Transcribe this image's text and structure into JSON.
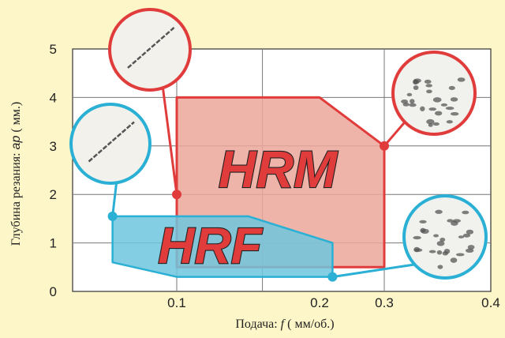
{
  "chart_data": {
    "type": "area",
    "xlabel": {
      "prefix": "Подача: ",
      "symbol": "f",
      "unit": " ( мм/об.)"
    },
    "ylabel": {
      "prefix": "Глубина резания: ",
      "symbol": "ap",
      "unit": " ( мм.)"
    },
    "x_ticks": [
      {
        "value": 0.1,
        "label": "0.1"
      },
      {
        "value": 0.2,
        "label": "0.2"
      },
      {
        "value": 0.3,
        "label": "0.3"
      },
      {
        "value": 0.4,
        "label": "0.4"
      }
    ],
    "y_ticks": [
      "0",
      "1",
      "2",
      "3",
      "4",
      "5"
    ],
    "ylim": [
      0,
      5
    ],
    "grid": true,
    "series": [
      {
        "name": "HRM",
        "color": "#e03c3c",
        "fill": "#eca79a",
        "polygon": [
          [
            0.1,
            0.5
          ],
          [
            0.1,
            4.0
          ],
          [
            0.2,
            4.0
          ],
          [
            0.3,
            3.0
          ],
          [
            0.3,
            0.5
          ]
        ],
        "callouts": [
          {
            "at": [
              0.1,
              2.0
            ],
            "inset": "fine-chip-photo"
          },
          {
            "at": [
              0.3,
              3.0
            ],
            "inset": "coarse-chip-photo"
          }
        ]
      },
      {
        "name": "HRF",
        "color": "#2ab0d4",
        "fill": "#6ec6de",
        "polygon": [
          [
            0.063,
            1.55
          ],
          [
            0.15,
            1.55
          ],
          [
            0.22,
            1.0
          ],
          [
            0.22,
            0.3
          ],
          [
            0.1,
            0.3
          ],
          [
            0.063,
            0.6
          ]
        ],
        "callouts": [
          {
            "at": [
              0.063,
              1.55
            ],
            "inset": "fine-chip-photo"
          },
          {
            "at": [
              0.22,
              0.3
            ],
            "inset": "small-chip-photo"
          }
        ]
      }
    ]
  }
}
